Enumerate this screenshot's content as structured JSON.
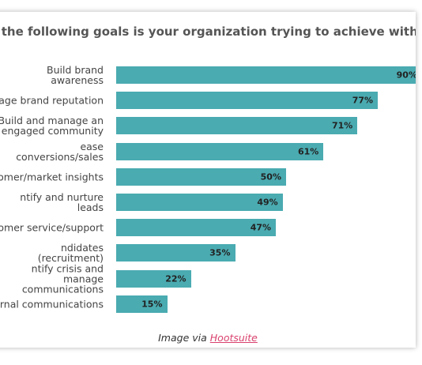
{
  "chart_data": {
    "type": "bar",
    "orientation": "horizontal",
    "title": "f the following goals is your organization trying to achieve with socia",
    "categories": [
      "Build brand awareness",
      "nage brand reputation",
      "Build and manage an\nengaged community",
      "ease conversions/sales",
      "tomer/market insights",
      "ntify and nurture leads",
      "tomer service/support",
      "ndidates (recruitment)",
      "ntify crisis and manage\ncommunications",
      "ernal communications"
    ],
    "values": [
      90,
      77,
      71,
      61,
      50,
      49,
      47,
      35,
      22,
      15
    ],
    "value_labels": [
      "90%",
      "77%",
      "71%",
      "61%",
      "50%",
      "49%",
      "47%",
      "35%",
      "22%",
      "15%"
    ],
    "color": "#4aabb1"
  },
  "caption": {
    "text": "Image via",
    "link": "Hootsuite"
  }
}
